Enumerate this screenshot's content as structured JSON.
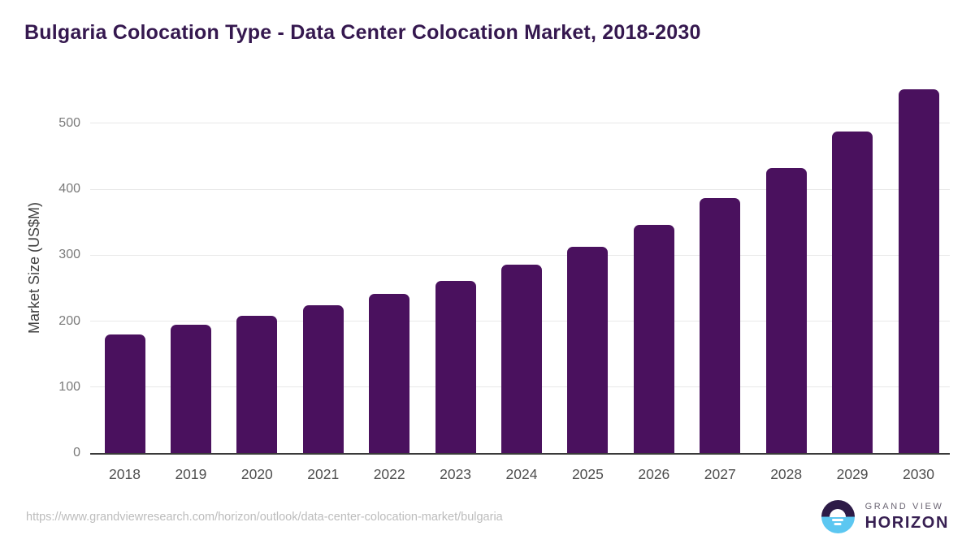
{
  "header": {
    "title": "Bulgaria Colocation Type - Data Center Colocation Market, 2018-2030"
  },
  "chart_data": {
    "type": "bar",
    "title": "Bulgaria Colocation Type - Data Center Colocation Market, 2018-2030",
    "categories": [
      "2018",
      "2019",
      "2020",
      "2021",
      "2022",
      "2023",
      "2024",
      "2025",
      "2026",
      "2027",
      "2028",
      "2029",
      "2030"
    ],
    "values": [
      180,
      194,
      208,
      224,
      241,
      261,
      285,
      313,
      346,
      386,
      432,
      487,
      551
    ],
    "xlabel": "",
    "ylabel": "Market Size (US$M)",
    "yticks": [
      0,
      100,
      200,
      300,
      400,
      500
    ],
    "ylim": [
      0,
      560
    ],
    "grid": "horizontal",
    "legend": "none",
    "bar_color": "#4a115e"
  },
  "footer": {
    "source_url": "https://www.grandviewresearch.com/horizon/outlook/data-center-colocation-market/bulgaria"
  },
  "logo": {
    "icon": "sunrise-horizon-icon",
    "line1": "GRAND VIEW",
    "line2": "HORIZON"
  },
  "colors": {
    "title_text": "#35184f",
    "bar": "#4a115e",
    "axis_line": "#3a3a3a",
    "gridline": "#e8e8e8",
    "y_tick_text": "#7a7a7a",
    "x_tick_text": "#4f4f4f",
    "url_text": "#bcbcbc",
    "logo_top": "#2d1b47",
    "logo_bottom": "#5cc7f1"
  }
}
